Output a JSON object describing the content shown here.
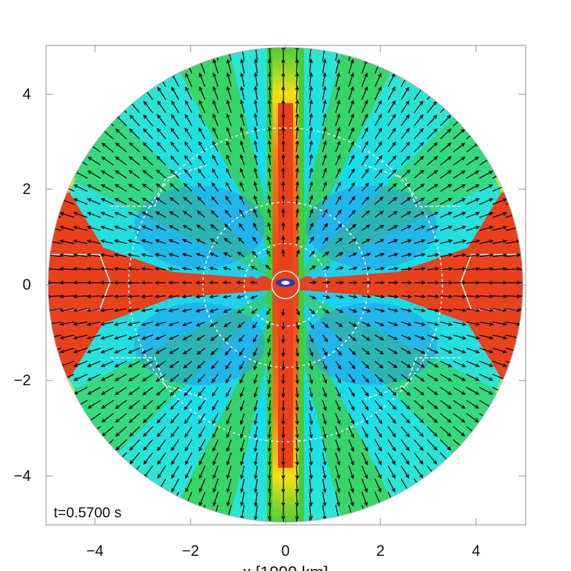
{
  "plot": {
    "time_stamp": "t=0.5700 s",
    "xlabel": "x [1000 km]",
    "x_ticks": [
      "−4",
      "−2",
      "0",
      "2",
      "4"
    ],
    "y_ticks": [
      "4",
      "2",
      "0",
      "−2",
      "−4"
    ],
    "xlim": [
      -4.9,
      4.9
    ],
    "ylim": [
      -4.9,
      4.9
    ],
    "colors": {
      "red": "#e8411c",
      "orange": "#f07818",
      "yellow": "#f2e014",
      "green": "#3ecf3a",
      "cyan": "#18dcea",
      "blue": "#2a8ee8",
      "contour": "#ffffff",
      "arrow": "#000000"
    }
  }
}
